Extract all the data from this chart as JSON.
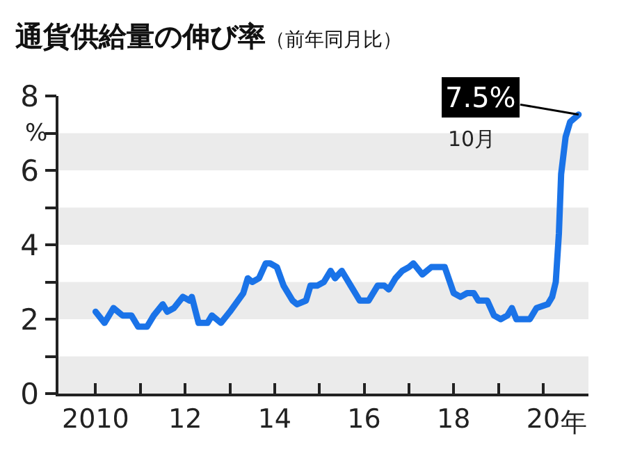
{
  "chart_data": {
    "type": "line",
    "title": "通貨供給量の伸び率",
    "subtitle": "（前年同月比）",
    "ylabel": "%",
    "x": [
      2010.0,
      2010.2,
      2010.4,
      2010.6,
      2010.8,
      2010.95,
      2011.15,
      2011.3,
      2011.5,
      2011.6,
      2011.75,
      2011.95,
      2012.1,
      2012.15,
      2012.3,
      2012.5,
      2012.6,
      2012.8,
      2013.0,
      2013.3,
      2013.4,
      2013.5,
      2013.65,
      2013.8,
      2013.9,
      2014.05,
      2014.2,
      2014.4,
      2014.5,
      2014.7,
      2014.8,
      2014.95,
      2015.1,
      2015.25,
      2015.35,
      2015.5,
      2015.7,
      2015.9,
      2016.1,
      2016.3,
      2016.45,
      2016.55,
      2016.7,
      2016.85,
      2017.0,
      2017.1,
      2017.3,
      2017.5,
      2017.8,
      2018.0,
      2018.15,
      2018.3,
      2018.45,
      2018.55,
      2018.75,
      2018.9,
      2019.05,
      2019.2,
      2019.3,
      2019.4,
      2019.7,
      2019.85,
      2020.1,
      2020.2,
      2020.28,
      2020.35,
      2020.4,
      2020.5,
      2020.6,
      2020.79
    ],
    "series": [
      {
        "color": "#1a73e8",
        "values": [
          2.2,
          1.9,
          2.3,
          2.1,
          2.1,
          1.8,
          1.8,
          2.1,
          2.4,
          2.2,
          2.3,
          2.6,
          2.5,
          2.6,
          1.9,
          1.9,
          2.1,
          1.9,
          2.2,
          2.7,
          3.1,
          3.0,
          3.1,
          3.5,
          3.5,
          3.4,
          2.9,
          2.5,
          2.4,
          2.5,
          2.9,
          2.9,
          3.0,
          3.3,
          3.1,
          3.3,
          2.9,
          2.5,
          2.5,
          2.9,
          2.9,
          2.8,
          3.1,
          3.3,
          3.4,
          3.5,
          3.2,
          3.4,
          3.4,
          2.7,
          2.6,
          2.7,
          2.7,
          2.5,
          2.5,
          2.1,
          2.0,
          2.1,
          2.3,
          2.0,
          2.0,
          2.3,
          2.4,
          2.6,
          3.0,
          4.3,
          5.9,
          6.9,
          7.3,
          7.5
        ]
      }
    ],
    "xlim": [
      2009.17,
      2021.01
    ],
    "xticks": [
      2010,
      {
        "value": 2011,
        "label": null
      },
      {
        "value": 2012,
        "label": "12"
      },
      {
        "value": 2013,
        "label": null
      },
      {
        "value": 2014,
        "label": "14"
      },
      {
        "value": 2015,
        "label": null
      },
      {
        "value": 2016,
        "label": "16"
      },
      {
        "value": 2017,
        "label": null
      },
      {
        "value": 2018,
        "label": "18"
      },
      {
        "value": 2019,
        "label": null
      },
      {
        "value": 2020,
        "label": "20"
      }
    ],
    "xlabel": "年",
    "ylim": [
      0,
      8
    ],
    "yticks": [
      0,
      {
        "value": 1,
        "label": null
      },
      2,
      {
        "value": 3,
        "label": null
      },
      4,
      {
        "value": 5,
        "label": null
      },
      6,
      {
        "value": 7,
        "label": null
      },
      8
    ],
    "bands": [
      {
        "axis": "y",
        "from": 0,
        "to": 1,
        "color": "#ebebeb"
      },
      {
        "axis": "y",
        "from": 2,
        "to": 3,
        "color": "#ebebeb"
      },
      {
        "axis": "y",
        "from": 4,
        "to": 5,
        "color": "#ebebeb"
      },
      {
        "axis": "y",
        "from": 6,
        "to": 7,
        "color": "#ebebeb"
      }
    ],
    "annotations": [
      {
        "text": "7.5%",
        "x": 2020.79,
        "y": 7.5
      },
      "10月"
    ],
    "grid": false,
    "marker": "none",
    "line_style": "solid"
  }
}
